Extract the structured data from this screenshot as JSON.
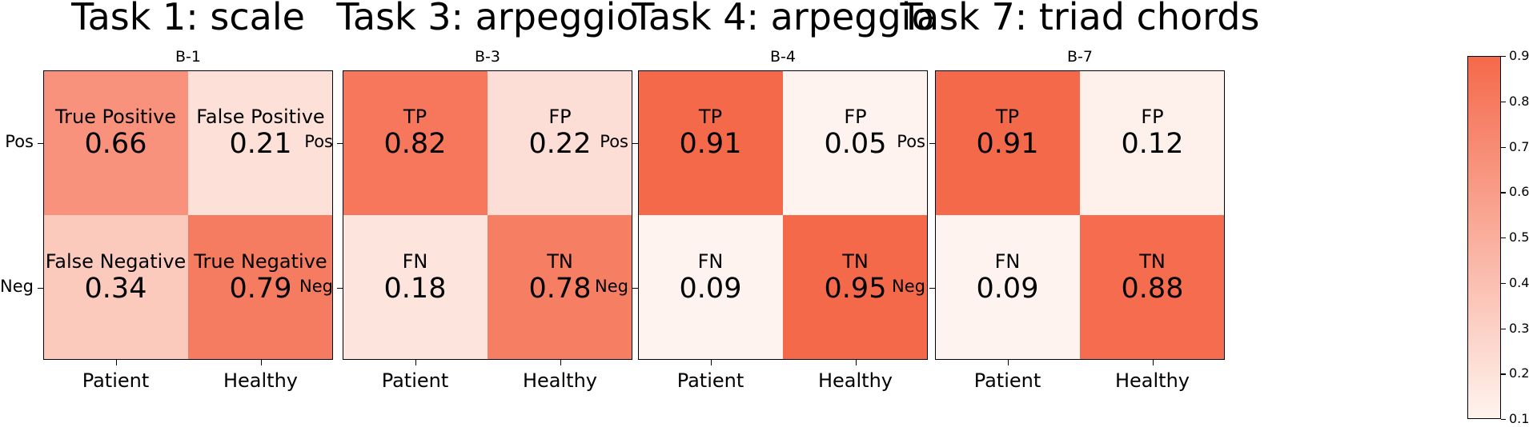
{
  "chart_data": [
    {
      "type": "heatmap",
      "title": "Task 1: scale",
      "subtitle": "B-1",
      "x_categories": [
        "Patient",
        "Healthy"
      ],
      "y_categories": [
        "Pos",
        "Neg"
      ],
      "cells": [
        [
          {
            "label": "True Positive",
            "value": 0.66
          },
          {
            "label": "False Positive",
            "value": 0.21
          }
        ],
        [
          {
            "label": "False Negative",
            "value": 0.34
          },
          {
            "label": "True Negative",
            "value": 0.79
          }
        ]
      ]
    },
    {
      "type": "heatmap",
      "title": "Task 3: arpeggio",
      "subtitle": "B-3",
      "x_categories": [
        "Patient",
        "Healthy"
      ],
      "y_categories": [
        "Pos",
        "Neg"
      ],
      "cells": [
        [
          {
            "label": "TP",
            "value": 0.82
          },
          {
            "label": "FP",
            "value": 0.22
          }
        ],
        [
          {
            "label": "FN",
            "value": 0.18
          },
          {
            "label": "TN",
            "value": 0.78
          }
        ]
      ]
    },
    {
      "type": "heatmap",
      "title": "Task 4: arpeggio",
      "subtitle": "B-4",
      "x_categories": [
        "Patient",
        "Healthy"
      ],
      "y_categories": [
        "Pos",
        "Neg"
      ],
      "cells": [
        [
          {
            "label": "TP",
            "value": 0.91
          },
          {
            "label": "FP",
            "value": 0.05
          }
        ],
        [
          {
            "label": "FN",
            "value": 0.09
          },
          {
            "label": "TN",
            "value": 0.95
          }
        ]
      ]
    },
    {
      "type": "heatmap",
      "title": "Task 7: triad chords",
      "subtitle": "B-7",
      "x_categories": [
        "Patient",
        "Healthy"
      ],
      "y_categories": [
        "Pos",
        "Neg"
      ],
      "cells": [
        [
          {
            "label": "TP",
            "value": 0.91
          },
          {
            "label": "FP",
            "value": 0.12
          }
        ],
        [
          {
            "label": "FN",
            "value": 0.09
          },
          {
            "label": "TN",
            "value": 0.88
          }
        ]
      ]
    }
  ],
  "colorbar": {
    "min": 0.1,
    "max": 0.9,
    "ticks": [
      "0.9",
      "0.8",
      "0.7",
      "0.6",
      "0.5",
      "0.4",
      "0.3",
      "0.2",
      "0.1"
    ],
    "color_low": "#fef3ee",
    "color_high": "#f5694b"
  }
}
